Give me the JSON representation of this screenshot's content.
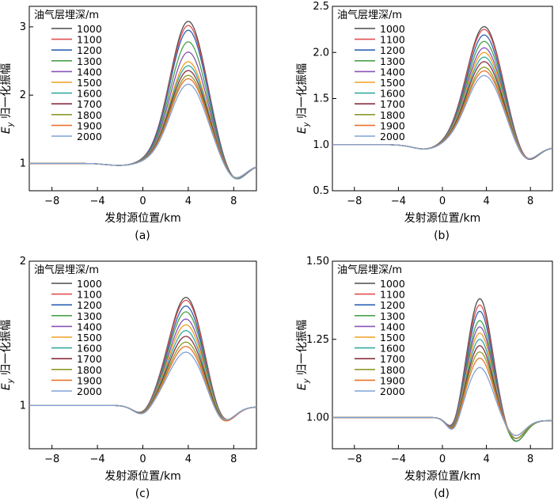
{
  "chart_data": [
    {
      "type": "line",
      "panel_label": "(a)",
      "xlabel": "发射源位置/km",
      "ylabel_prefix": "E",
      "ylabel_sub": "y",
      "ylabel_suffix": " 归一化振幅",
      "xlim": [
        -10,
        10
      ],
      "ylim": [
        0.6,
        3.3
      ],
      "xticks": [
        -8,
        -4,
        0,
        4,
        8
      ],
      "xtick_labels": [
        "−8",
        "−4",
        "0",
        "4",
        "8"
      ],
      "yticks": [
        1,
        2,
        3
      ],
      "ytick_labels": [
        "1",
        "2",
        "3"
      ],
      "legend_title": "油气层埋深/m",
      "legend_position": "top-left",
      "dip": {
        "x": -2.0,
        "depth": 0.03,
        "width": 1.2
      },
      "peak_x": 4.0,
      "peak_width": 1.6,
      "trough": {
        "x": 8.0,
        "width": 1.0
      },
      "end": {
        "x": 10.0,
        "value": 0.98
      },
      "series": [
        {
          "name": "1000",
          "color": "#4d4d4d",
          "peak": 3.08,
          "trough": 0.71
        },
        {
          "name": "1100",
          "color": "#e05050",
          "peak": 3.02,
          "trough": 0.71
        },
        {
          "name": "1200",
          "color": "#2e64b4",
          "peak": 2.95,
          "trough": 0.71
        },
        {
          "name": "1300",
          "color": "#4aa24a",
          "peak": 2.78,
          "trough": 0.72
        },
        {
          "name": "1400",
          "color": "#8a54b8",
          "peak": 2.63,
          "trough": 0.72
        },
        {
          "name": "1500",
          "color": "#f0a020",
          "peak": 2.49,
          "trough": 0.73
        },
        {
          "name": "1600",
          "color": "#35aaa0",
          "peak": 2.43,
          "trough": 0.73
        },
        {
          "name": "1700",
          "color": "#8b2f3f",
          "peak": 2.36,
          "trough": 0.74
        },
        {
          "name": "1800",
          "color": "#909a2a",
          "peak": 2.29,
          "trough": 0.74
        },
        {
          "name": "1900",
          "color": "#e8742a",
          "peak": 2.24,
          "trough": 0.75
        },
        {
          "name": "2000",
          "color": "#7fa2d6",
          "peak": 2.16,
          "trough": 0.75
        }
      ]
    },
    {
      "type": "line",
      "panel_label": "(b)",
      "xlabel": "发射源位置/km",
      "ylabel_prefix": "E",
      "ylabel_sub": "y",
      "ylabel_suffix": " 归一化振幅",
      "xlim": [
        -10,
        10
      ],
      "ylim": [
        0.5,
        2.5
      ],
      "xticks": [
        -8,
        -4,
        0,
        4,
        8
      ],
      "xtick_labels": [
        "−8",
        "−4",
        "0",
        "4",
        "8"
      ],
      "yticks": [
        0.5,
        1.0,
        1.5,
        2.0,
        2.5
      ],
      "ytick_labels": [
        "0.5",
        "1.0",
        "1.5",
        "2.0",
        "2.5"
      ],
      "legend_title": "油气层埋深/m",
      "legend_position": "top-left",
      "dip": {
        "x": -1.5,
        "depth": 0.05,
        "width": 1.2
      },
      "peak_x": 3.8,
      "peak_width": 1.6,
      "trough": {
        "x": 7.6,
        "width": 1.0
      },
      "end": {
        "x": 10.0,
        "value": 0.97
      },
      "series": [
        {
          "name": "1000",
          "color": "#4d4d4d",
          "peak": 2.28,
          "trough": 0.79
        },
        {
          "name": "1100",
          "color": "#e05050",
          "peak": 2.25,
          "trough": 0.79
        },
        {
          "name": "1200",
          "color": "#2e64b4",
          "peak": 2.19,
          "trough": 0.79
        },
        {
          "name": "1300",
          "color": "#4aa24a",
          "peak": 2.12,
          "trough": 0.79
        },
        {
          "name": "1400",
          "color": "#8a54b8",
          "peak": 2.05,
          "trough": 0.8
        },
        {
          "name": "1500",
          "color": "#f0a020",
          "peak": 2.0,
          "trough": 0.8
        },
        {
          "name": "1600",
          "color": "#35aaa0",
          "peak": 1.95,
          "trough": 0.8
        },
        {
          "name": "1700",
          "color": "#8b2f3f",
          "peak": 1.9,
          "trough": 0.8
        },
        {
          "name": "1800",
          "color": "#909a2a",
          "peak": 1.84,
          "trough": 0.81
        },
        {
          "name": "1900",
          "color": "#e8742a",
          "peak": 1.8,
          "trough": 0.81
        },
        {
          "name": "2000",
          "color": "#7fa2d6",
          "peak": 1.75,
          "trough": 0.81
        }
      ]
    },
    {
      "type": "line",
      "panel_label": "(c)",
      "xlabel": "发射源位置/km",
      "ylabel_prefix": "E",
      "ylabel_sub": "y",
      "ylabel_suffix": " 归一化振幅",
      "xlim": [
        -10,
        10
      ],
      "ylim": [
        0.7,
        2.0
      ],
      "xticks": [
        -8,
        -4,
        0,
        4,
        8
      ],
      "xtick_labels": [
        "−8",
        "−4",
        "0",
        "4",
        "8"
      ],
      "yticks": [
        1,
        2
      ],
      "ytick_labels": [
        "1",
        "2"
      ],
      "legend_title": "油气层埋深/m",
      "legend_position": "top-left",
      "dip": {
        "x": 0.0,
        "depth": 0.07,
        "width": 0.8
      },
      "peak_x": 3.8,
      "peak_width": 1.5,
      "trough": {
        "x": 7.0,
        "width": 1.0
      },
      "end": {
        "x": 10.0,
        "value": 0.99
      },
      "series": [
        {
          "name": "1000",
          "color": "#4d4d4d",
          "peak": 1.75,
          "trough": 0.85
        },
        {
          "name": "1100",
          "color": "#e05050",
          "peak": 1.73,
          "trough": 0.85
        },
        {
          "name": "1200",
          "color": "#2e64b4",
          "peak": 1.69,
          "trough": 0.85
        },
        {
          "name": "1300",
          "color": "#4aa24a",
          "peak": 1.65,
          "trough": 0.85
        },
        {
          "name": "1400",
          "color": "#8a54b8",
          "peak": 1.6,
          "trough": 0.85
        },
        {
          "name": "1500",
          "color": "#f0a020",
          "peak": 1.56,
          "trough": 0.86
        },
        {
          "name": "1600",
          "color": "#35aaa0",
          "peak": 1.52,
          "trough": 0.86
        },
        {
          "name": "1700",
          "color": "#8b2f3f",
          "peak": 1.48,
          "trough": 0.86
        },
        {
          "name": "1800",
          "color": "#909a2a",
          "peak": 1.44,
          "trough": 0.86
        },
        {
          "name": "1900",
          "color": "#e8742a",
          "peak": 1.41,
          "trough": 0.86
        },
        {
          "name": "2000",
          "color": "#7fa2d6",
          "peak": 1.37,
          "trough": 0.87
        }
      ]
    },
    {
      "type": "line",
      "panel_label": "(d)",
      "xlabel": "发射源位置/km",
      "ylabel_prefix": "E",
      "ylabel_sub": "y",
      "ylabel_suffix": " 归一化振幅",
      "xlim": [
        -10,
        10
      ],
      "ylim": [
        0.9,
        1.5
      ],
      "xticks": [
        -8,
        -4,
        0,
        4,
        8
      ],
      "xtick_labels": [
        "−8",
        "−4",
        "0",
        "4",
        "8"
      ],
      "yticks": [
        1.0,
        1.25,
        1.5
      ],
      "ytick_labels": [
        "1.00",
        "1.25",
        "1.50"
      ],
      "legend_title": "油气层埋深/m",
      "legend_position": "top-left",
      "dip": {
        "x": 1.0,
        "depth": 0.05,
        "width": 0.6
      },
      "peak_x": 3.4,
      "peak_width": 1.1,
      "trough": {
        "x": 6.6,
        "width": 0.9
      },
      "end": {
        "x": 10.0,
        "value": 0.99
      },
      "series": [
        {
          "name": "1000",
          "color": "#4d4d4d",
          "peak": 1.38,
          "trough": 0.92
        },
        {
          "name": "1100",
          "color": "#e05050",
          "peak": 1.36,
          "trough": 0.92
        },
        {
          "name": "1200",
          "color": "#2e64b4",
          "peak": 1.34,
          "trough": 0.92
        },
        {
          "name": "1300",
          "color": "#4aa24a",
          "peak": 1.31,
          "trough": 0.92
        },
        {
          "name": "1400",
          "color": "#8a54b8",
          "peak": 1.29,
          "trough": 0.93
        },
        {
          "name": "1500",
          "color": "#f0a020",
          "peak": 1.27,
          "trough": 0.93
        },
        {
          "name": "1600",
          "color": "#35aaa0",
          "peak": 1.25,
          "trough": 0.93
        },
        {
          "name": "1700",
          "color": "#8b2f3f",
          "peak": 1.23,
          "trough": 0.93
        },
        {
          "name": "1800",
          "color": "#909a2a",
          "peak": 1.21,
          "trough": 0.93
        },
        {
          "name": "1900",
          "color": "#e8742a",
          "peak": 1.19,
          "trough": 0.94
        },
        {
          "name": "2000",
          "color": "#7fa2d6",
          "peak": 1.16,
          "trough": 0.94
        }
      ]
    }
  ]
}
